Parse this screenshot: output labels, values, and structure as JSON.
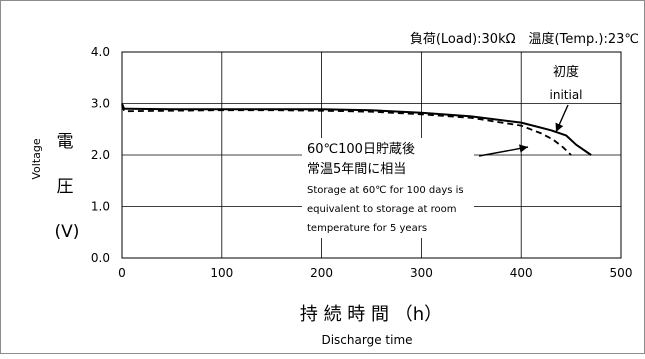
{
  "chart_data": {
    "type": "line",
    "title": "",
    "conditions": "負荷(Load):30kΩ　温度(Temp.):23℃",
    "ylabel": {
      "jp_line1": "電",
      "jp_line2": "圧",
      "unit": "(V)",
      "en": "Voltage"
    },
    "xlabel": {
      "jp": "持 続 時 間 （h）",
      "en": "Discharge time"
    },
    "xlim": [
      0,
      500
    ],
    "ylim": [
      0.0,
      4.0
    ],
    "x_ticks": [
      0,
      100,
      200,
      300,
      400,
      500
    ],
    "x_tick_labels": [
      "0",
      "100",
      "200",
      "300",
      "400",
      "500"
    ],
    "y_ticks": [
      0.0,
      1.0,
      2.0,
      3.0,
      4.0
    ],
    "y_tick_labels": [
      "0.0",
      "1.0",
      "2.0",
      "3.0",
      "4.0"
    ],
    "grid": true,
    "series": [
      {
        "style": "solid",
        "x": [
          0,
          2,
          5,
          50,
          100,
          150,
          200,
          250,
          300,
          350,
          400,
          430,
          445,
          455,
          470
        ],
        "y": [
          3.0,
          2.9,
          2.9,
          2.89,
          2.89,
          2.89,
          2.89,
          2.87,
          2.82,
          2.75,
          2.63,
          2.48,
          2.38,
          2.2,
          2.0
        ]
      },
      {
        "style": "dashed",
        "x": [
          0,
          2,
          5,
          50,
          100,
          150,
          200,
          250,
          300,
          350,
          400,
          420,
          432,
          442,
          450
        ],
        "y": [
          2.97,
          2.86,
          2.85,
          2.86,
          2.87,
          2.87,
          2.86,
          2.84,
          2.79,
          2.72,
          2.57,
          2.42,
          2.3,
          2.15,
          2.0
        ]
      }
    ],
    "annotations": {
      "initial": {
        "jp": "初度",
        "en": "initial"
      },
      "storage": {
        "jp_line1": "60℃100日貯蔵後",
        "jp_line2": "常温5年間に相当",
        "en_line1": "Storage at 60℃ for 100 days is",
        "en_line2": "equivalent to storage at room",
        "en_line3": "temperature for 5 years"
      }
    }
  }
}
